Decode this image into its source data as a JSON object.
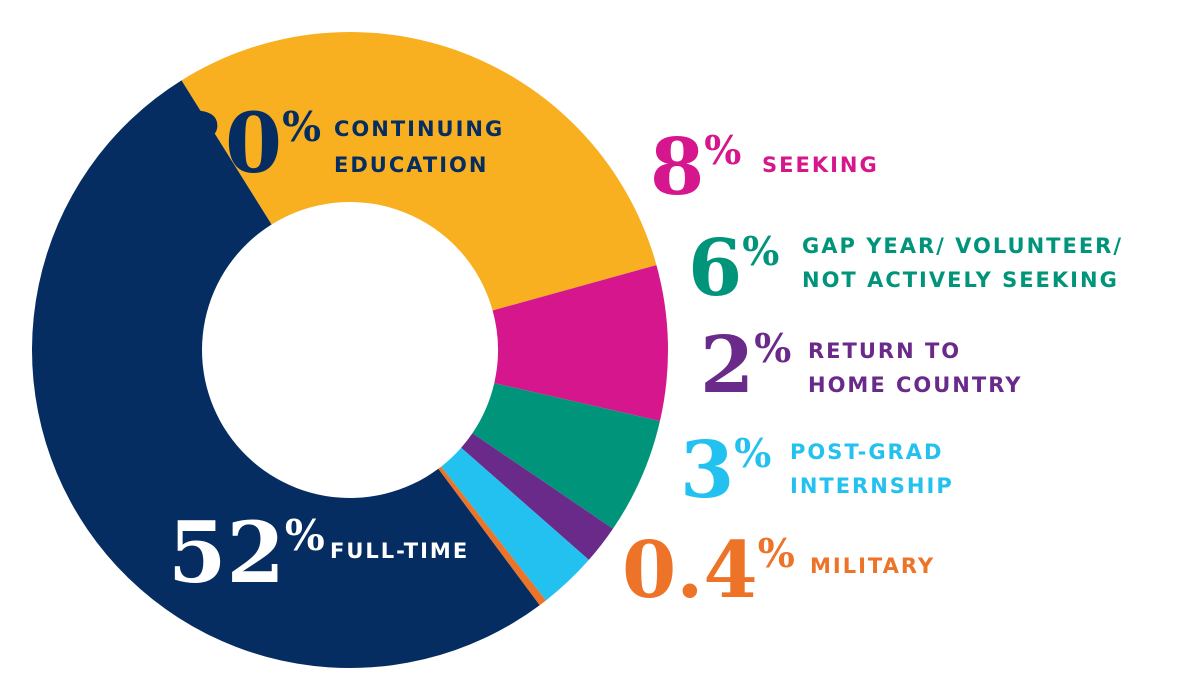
{
  "chart_data": {
    "type": "pie",
    "variant": "donut",
    "title": "",
    "slices": [
      {
        "value": 52,
        "value_text": "52",
        "pct_sign": "%",
        "label_lines": [
          "FULL-TIME"
        ],
        "color": "#062d62",
        "text_color": "#ffffff"
      },
      {
        "value": 30,
        "value_text": "30",
        "pct_sign": "%",
        "label_lines": [
          "CONTINUING",
          "EDUCATION"
        ],
        "color": "#f8b020",
        "text_color": "#062d62"
      },
      {
        "value": 8,
        "value_text": "8",
        "pct_sign": "%",
        "label_lines": [
          "SEEKING"
        ],
        "color": "#d6168c",
        "text_color": "#d6168c"
      },
      {
        "value": 6,
        "value_text": "6",
        "pct_sign": "%",
        "label_lines": [
          "GAP YEAR/ VOLUNTEER/",
          "NOT ACTIVELY SEEKING"
        ],
        "color": "#00957a",
        "text_color": "#00957a"
      },
      {
        "value": 2,
        "value_text": "2",
        "pct_sign": "%",
        "label_lines": [
          "RETURN TO",
          "HOME COUNTRY"
        ],
        "color": "#6a2a8a",
        "text_color": "#6a2a8a"
      },
      {
        "value": 3,
        "value_text": "3",
        "pct_sign": "%",
        "label_lines": [
          "POST-GRAD",
          "INTERNSHIP"
        ],
        "color": "#23c1ef",
        "text_color": "#23c1ef"
      },
      {
        "value": 0.4,
        "value_text": "0.4",
        "pct_sign": "%",
        "label_lines": [
          "MILITARY"
        ],
        "color": "#ed7328",
        "text_color": "#ed7328"
      }
    ]
  }
}
